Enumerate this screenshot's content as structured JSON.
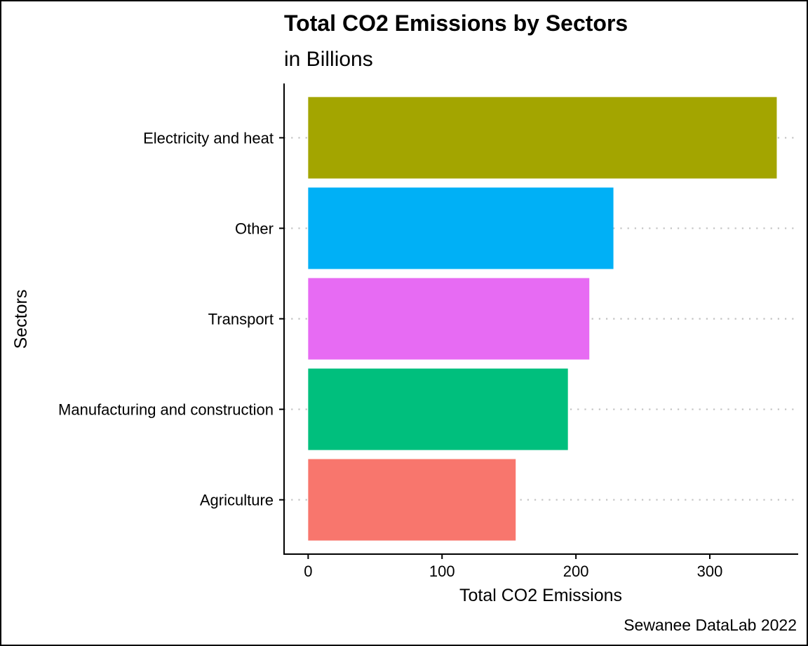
{
  "chart_data": {
    "type": "bar",
    "orientation": "horizontal",
    "title": "Total CO2 Emissions by Sectors",
    "subtitle": "in Billions",
    "xlabel": "Total CO2 Emissions",
    "ylabel": "Sectors",
    "caption": "Sewanee DataLab 2022",
    "categories": [
      "Electricity and heat",
      "Other",
      "Transport",
      "Manufacturing and construction",
      "Agriculture"
    ],
    "values": [
      350,
      228,
      210,
      194,
      155
    ],
    "colors": [
      "#A3A500",
      "#00B0F6",
      "#E76BF3",
      "#00BF7D",
      "#F8766D"
    ],
    "xlim": [
      -18,
      366
    ],
    "xticks": [
      0,
      100,
      200,
      300
    ],
    "grid": "horizontal dotted",
    "legend": "none"
  }
}
